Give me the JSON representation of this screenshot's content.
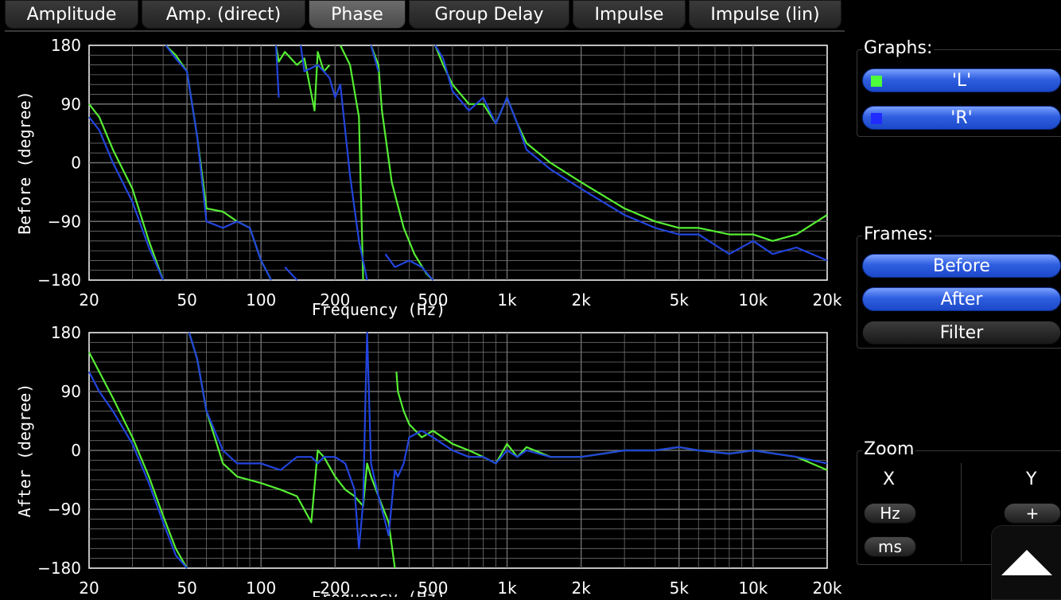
{
  "tabs": [
    "Amplitude",
    "Amp. (direct)",
    "Phase",
    "Group Delay",
    "Impulse",
    "Impulse (lin)"
  ],
  "active_tab": "Phase",
  "plots": [
    {
      "ylabel": "Before (degree)",
      "xlabel": "Frequency (Hz)"
    },
    {
      "ylabel": "After (degree)",
      "xlabel": "Frequency (Hz)"
    }
  ],
  "yticks": [
    "180",
    "90",
    "0",
    "−90",
    "−180"
  ],
  "xticks": [
    "20",
    "50",
    "100",
    "200",
    "500",
    "1k",
    "2k",
    "5k",
    "10k",
    "20k"
  ],
  "sidebar": {
    "graphs_label": "Graphs:",
    "graphs": [
      {
        "label": "'L'",
        "color": "#4cff3a"
      },
      {
        "label": "'R'",
        "color": "#1f2bff"
      }
    ],
    "frames_label": "Frames:",
    "frames": [
      {
        "label": "Before",
        "active": true
      },
      {
        "label": "After",
        "active": true
      },
      {
        "label": "Filter",
        "active": false
      }
    ],
    "zoom_label": "Zoom",
    "zoom_x_label": "X",
    "zoom_y_label": "Y",
    "zoom_x_buttons": [
      "Hz",
      "ms"
    ],
    "zoom_y_buttons": [
      "+",
      "-"
    ]
  },
  "colors": {
    "L": "#55ee33",
    "R": "#2244dd",
    "grid": "#6f6f6f"
  },
  "chart_data": [
    {
      "type": "line",
      "xscale": "log",
      "xlim": [
        20,
        20000
      ],
      "ylim": [
        -180,
        180
      ],
      "ylabel": "Before (degree)",
      "xlabel": "Frequency (Hz)",
      "series": [
        {
          "name": "'L'",
          "x": [
            20,
            22,
            25,
            30,
            35,
            40,
            41,
            45,
            50,
            55,
            60,
            70,
            80,
            90,
            100,
            110,
            115,
            118,
            125,
            140,
            150,
            165,
            170,
            180,
            190,
            200,
            210,
            230,
            250,
            260,
            280,
            300,
            310,
            340,
            380,
            420,
            470,
            500,
            510,
            550,
            600,
            700,
            800,
            900,
            1000,
            1100,
            1200,
            1500,
            2000,
            3000,
            4000,
            5000,
            6000,
            8000,
            10000,
            12000,
            15000,
            20000
          ],
          "y": [
            90,
            70,
            20,
            -40,
            -120,
            -180,
            180,
            165,
            140,
            40,
            -70,
            -75,
            -90,
            -100,
            -150,
            -180,
            180,
            155,
            170,
            150,
            160,
            80,
            170,
            140,
            150,
            -170,
            180,
            150,
            70,
            -180,
            180,
            150,
            80,
            -30,
            -100,
            -140,
            -170,
            -180,
            180,
            150,
            120,
            90,
            90,
            60,
            100,
            60,
            30,
            0,
            -30,
            -70,
            -90,
            -100,
            -100,
            -110,
            -110,
            -120,
            -110,
            -80
          ]
        },
        {
          "name": "'R'",
          "x": [
            20,
            22,
            25,
            30,
            35,
            40,
            41,
            45,
            50,
            55,
            60,
            70,
            80,
            90,
            100,
            110,
            115,
            118,
            125,
            140,
            145,
            150,
            170,
            180,
            190,
            200,
            210,
            230,
            250,
            270,
            280,
            290,
            300,
            320,
            350,
            400,
            450,
            500,
            510,
            550,
            600,
            700,
            800,
            900,
            1000,
            1100,
            1200,
            1500,
            2000,
            3000,
            4000,
            5000,
            6000,
            8000,
            10000,
            12000,
            15000,
            20000
          ],
          "y": [
            70,
            50,
            0,
            -60,
            -130,
            -180,
            180,
            160,
            140,
            40,
            -90,
            -100,
            -90,
            -100,
            -150,
            -180,
            180,
            100,
            -160,
            -180,
            180,
            140,
            150,
            140,
            130,
            100,
            120,
            -20,
            -120,
            -180,
            180,
            160,
            140,
            -140,
            -160,
            -150,
            -160,
            -180,
            180,
            160,
            110,
            80,
            100,
            60,
            100,
            60,
            20,
            -10,
            -40,
            -80,
            -100,
            -110,
            -110,
            -140,
            -120,
            -140,
            -130,
            -150
          ]
        }
      ]
    },
    {
      "type": "line",
      "xscale": "log",
      "xlim": [
        20,
        20000
      ],
      "ylim": [
        -180,
        180
      ],
      "ylabel": "After (degree)",
      "xlabel": "Frequency (Hz)",
      "series": [
        {
          "name": "'L'",
          "x": [
            20,
            22,
            25,
            30,
            35,
            40,
            45,
            50,
            51,
            55,
            60,
            70,
            80,
            100,
            120,
            140,
            160,
            170,
            180,
            200,
            220,
            240,
            260,
            270,
            280,
            300,
            330,
            350,
            355,
            360,
            380,
            400,
            450,
            500,
            600,
            700,
            800,
            900,
            1000,
            1100,
            1200,
            1500,
            2000,
            3000,
            4000,
            5000,
            6000,
            8000,
            10000,
            15000,
            20000
          ],
          "y": [
            150,
            120,
            80,
            20,
            -40,
            -100,
            -150,
            -180,
            180,
            140,
            60,
            -20,
            -40,
            -50,
            -60,
            -70,
            -110,
            0,
            -10,
            -40,
            -60,
            -70,
            -85,
            -20,
            -40,
            -70,
            -110,
            -180,
            120,
            90,
            60,
            40,
            20,
            30,
            10,
            0,
            -10,
            -20,
            10,
            -10,
            5,
            -10,
            -10,
            0,
            0,
            5,
            0,
            -5,
            0,
            -10,
            -30
          ]
        },
        {
          "name": "'R'",
          "x": [
            20,
            22,
            25,
            30,
            35,
            40,
            45,
            50,
            51,
            55,
            60,
            70,
            80,
            100,
            120,
            140,
            160,
            170,
            180,
            200,
            220,
            240,
            250,
            260,
            265,
            270,
            280,
            300,
            320,
            330,
            340,
            350,
            360,
            380,
            400,
            450,
            500,
            600,
            700,
            800,
            900,
            1000,
            1100,
            1200,
            1500,
            2000,
            3000,
            4000,
            5000,
            6000,
            8000,
            10000,
            15000,
            20000
          ],
          "y": [
            120,
            90,
            60,
            10,
            -50,
            -110,
            -160,
            -180,
            180,
            140,
            60,
            0,
            -20,
            -20,
            -30,
            -10,
            -10,
            -20,
            -10,
            -10,
            -20,
            -60,
            -150,
            -80,
            60,
            180,
            -20,
            -70,
            -110,
            -130,
            -80,
            -30,
            -40,
            -20,
            20,
            30,
            20,
            0,
            -10,
            -10,
            -20,
            0,
            -10,
            0,
            -10,
            -10,
            0,
            0,
            5,
            0,
            -5,
            0,
            -10,
            -20
          ]
        }
      ]
    }
  ]
}
